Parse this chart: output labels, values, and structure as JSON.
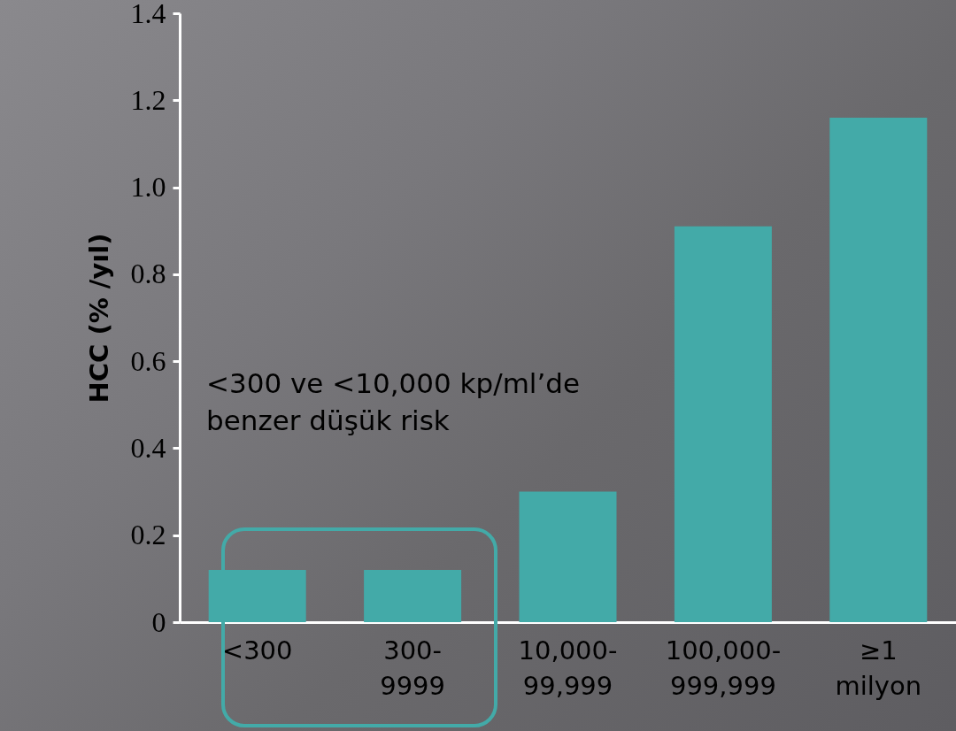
{
  "chart_data": {
    "type": "bar",
    "ylabel": "HCC  (% /yıl)",
    "categories": [
      "<300",
      "300-9999",
      "10,000-99,999",
      "100,000-999,999",
      "≥1 milyon"
    ],
    "values": [
      0.12,
      0.12,
      0.3,
      0.91,
      1.16
    ],
    "color": "#43aaa8",
    "ylim": [
      0,
      1.4
    ],
    "yticks": [
      0,
      0.2,
      0.4,
      0.6,
      0.8,
      {
        "value": 1,
        "label": "1.0"
      },
      1.2,
      1.4
    ],
    "grid": false,
    "annotations": [
      "<300 ve <10,000 kp/ml’de\nbenzer düşük risk"
    ]
  }
}
